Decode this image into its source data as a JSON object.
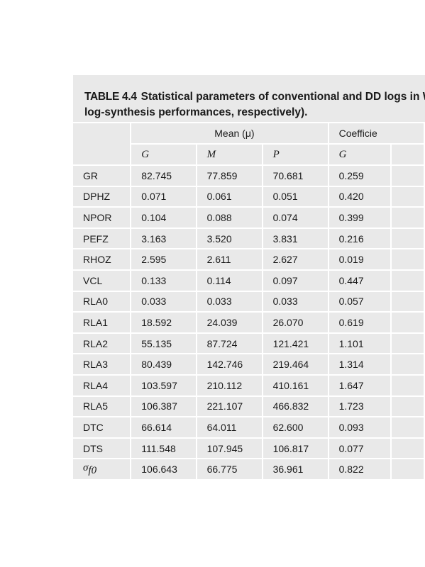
{
  "caption": {
    "label": "TABLE 4.4",
    "line1": "Statistical parameters of conventional and DD logs in W",
    "line2": "log-synthesis performances, respectively)."
  },
  "header": {
    "group_mean": "Mean (μ)",
    "group_cv": "Coefficie",
    "sub": [
      "G",
      "M",
      "P",
      "G"
    ]
  },
  "rows": [
    {
      "name": "GR",
      "values": [
        "82.745",
        "77.859",
        "70.681",
        "0.259"
      ]
    },
    {
      "name": "DPHZ",
      "values": [
        "0.071",
        "0.061",
        "0.051",
        "0.420"
      ]
    },
    {
      "name": "NPOR",
      "values": [
        "0.104",
        "0.088",
        "0.074",
        "0.399"
      ]
    },
    {
      "name": "PEFZ",
      "values": [
        "3.163",
        "3.520",
        "3.831",
        "0.216"
      ]
    },
    {
      "name": "RHOZ",
      "values": [
        "2.595",
        "2.611",
        "2.627",
        "0.019"
      ]
    },
    {
      "name": "VCL",
      "values": [
        "0.133",
        "0.114",
        "0.097",
        "0.447"
      ]
    },
    {
      "name": "RLA0",
      "values": [
        "0.033",
        "0.033",
        "0.033",
        "0.057"
      ]
    },
    {
      "name": "RLA1",
      "values": [
        "18.592",
        "24.039",
        "26.070",
        "0.619"
      ]
    },
    {
      "name": "RLA2",
      "values": [
        "55.135",
        "87.724",
        "121.421",
        "1.101"
      ]
    },
    {
      "name": "RLA3",
      "values": [
        "80.439",
        "142.746",
        "219.464",
        "1.314"
      ]
    },
    {
      "name": "RLA4",
      "values": [
        "103.597",
        "210.112",
        "410.161",
        "1.647"
      ]
    },
    {
      "name": "RLA5",
      "values": [
        "106.387",
        "221.107",
        "466.832",
        "1.723"
      ]
    },
    {
      "name": "DTC",
      "values": [
        "66.614",
        "64.011",
        "62.600",
        "0.093"
      ]
    },
    {
      "name": "DTS",
      "values": [
        "111.548",
        "107.945",
        "106.817",
        "0.077"
      ]
    }
  ],
  "last_row": {
    "symbol": "σ",
    "subscript": "f0",
    "values": [
      "106.643",
      "66.775",
      "36.961",
      "0.822"
    ]
  }
}
